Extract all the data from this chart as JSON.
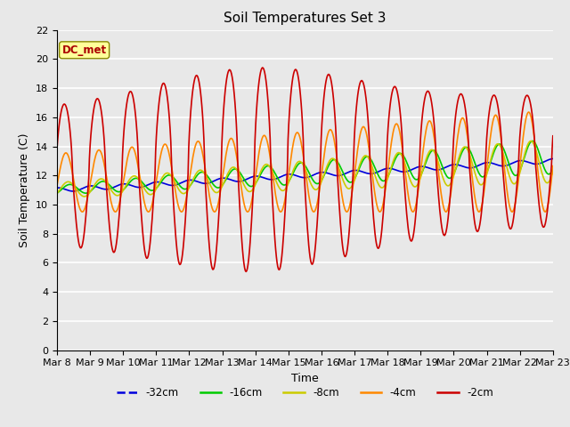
{
  "title": "Soil Temperatures Set 3",
  "xlabel": "Time",
  "ylabel": "Soil Temperature (C)",
  "annotation": "DC_met",
  "ylim": [
    0,
    22
  ],
  "yticks": [
    0,
    2,
    4,
    6,
    8,
    10,
    12,
    14,
    16,
    18,
    20,
    22
  ],
  "x_tick_labels": [
    "Mar 8",
    "Mar 9",
    "Mar 10",
    "Mar 11",
    "Mar 12",
    "Mar 13",
    "Mar 14",
    "Mar 15",
    "Mar 16",
    "Mar 17",
    "Mar 18",
    "Mar 19",
    "Mar 20",
    "Mar 21",
    "Mar 22",
    "Mar 23"
  ],
  "n_days": 15,
  "pts_per_day": 48,
  "series_colors": {
    "-32cm": "#0000dd",
    "-16cm": "#00cc00",
    "-8cm": "#cccc00",
    "-4cm": "#ff8800",
    "-2cm": "#cc0000"
  },
  "legend_order": [
    "-32cm",
    "-16cm",
    "-8cm",
    "-4cm",
    "-2cm"
  ],
  "plot_bg_color": "#e8e8e8",
  "grid_color": "#ffffff",
  "annotation_box_color": "#ffff99",
  "annotation_text_color": "#aa0000",
  "annotation_edge_color": "#888800",
  "title_fontsize": 11,
  "axis_label_fontsize": 9,
  "tick_fontsize": 8
}
